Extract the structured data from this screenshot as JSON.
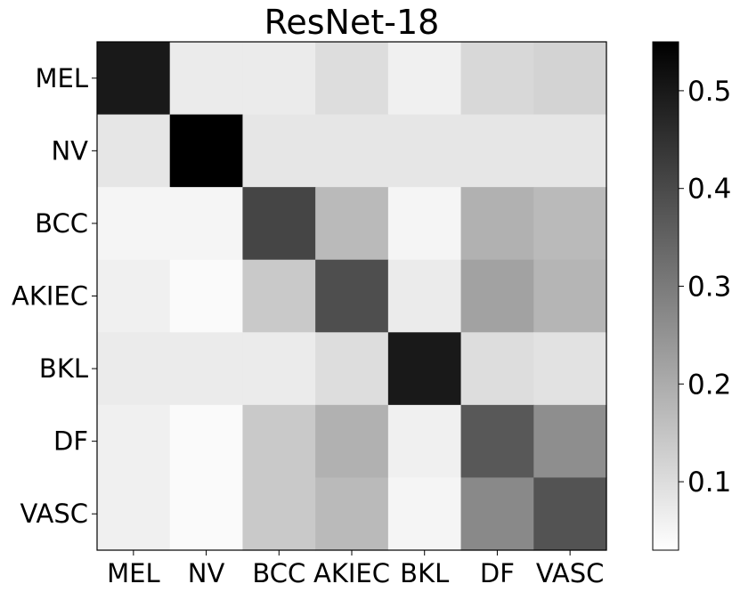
{
  "chart_data": {
    "type": "heatmap",
    "title": "ResNet-18",
    "xlabel": "",
    "ylabel": "",
    "x_categories": [
      "MEL",
      "NV",
      "BCC",
      "AKIEC",
      "BKL",
      "DF",
      "VASC"
    ],
    "y_categories": [
      "MEL",
      "NV",
      "BCC",
      "AKIEC",
      "BKL",
      "DF",
      "VASC"
    ],
    "values": [
      [
        0.5,
        0.07,
        0.07,
        0.1,
        0.06,
        0.11,
        0.12
      ],
      [
        0.08,
        0.55,
        0.08,
        0.08,
        0.08,
        0.08,
        0.08
      ],
      [
        0.05,
        0.05,
        0.41,
        0.17,
        0.05,
        0.19,
        0.17
      ],
      [
        0.06,
        0.04,
        0.14,
        0.39,
        0.07,
        0.22,
        0.18
      ],
      [
        0.07,
        0.07,
        0.07,
        0.1,
        0.5,
        0.1,
        0.09
      ],
      [
        0.06,
        0.04,
        0.14,
        0.19,
        0.06,
        0.37,
        0.26
      ],
      [
        0.06,
        0.04,
        0.14,
        0.17,
        0.05,
        0.27,
        0.38
      ]
    ],
    "colormap": "Greys",
    "colorbar": {
      "vmin": 0.03,
      "vmax": 0.55,
      "ticks": [
        0.1,
        0.2,
        0.3,
        0.4,
        0.5
      ],
      "tick_labels": [
        "0.1",
        "0.2",
        "0.3",
        "0.4",
        "0.5"
      ],
      "placement": "right"
    },
    "grid": false
  }
}
